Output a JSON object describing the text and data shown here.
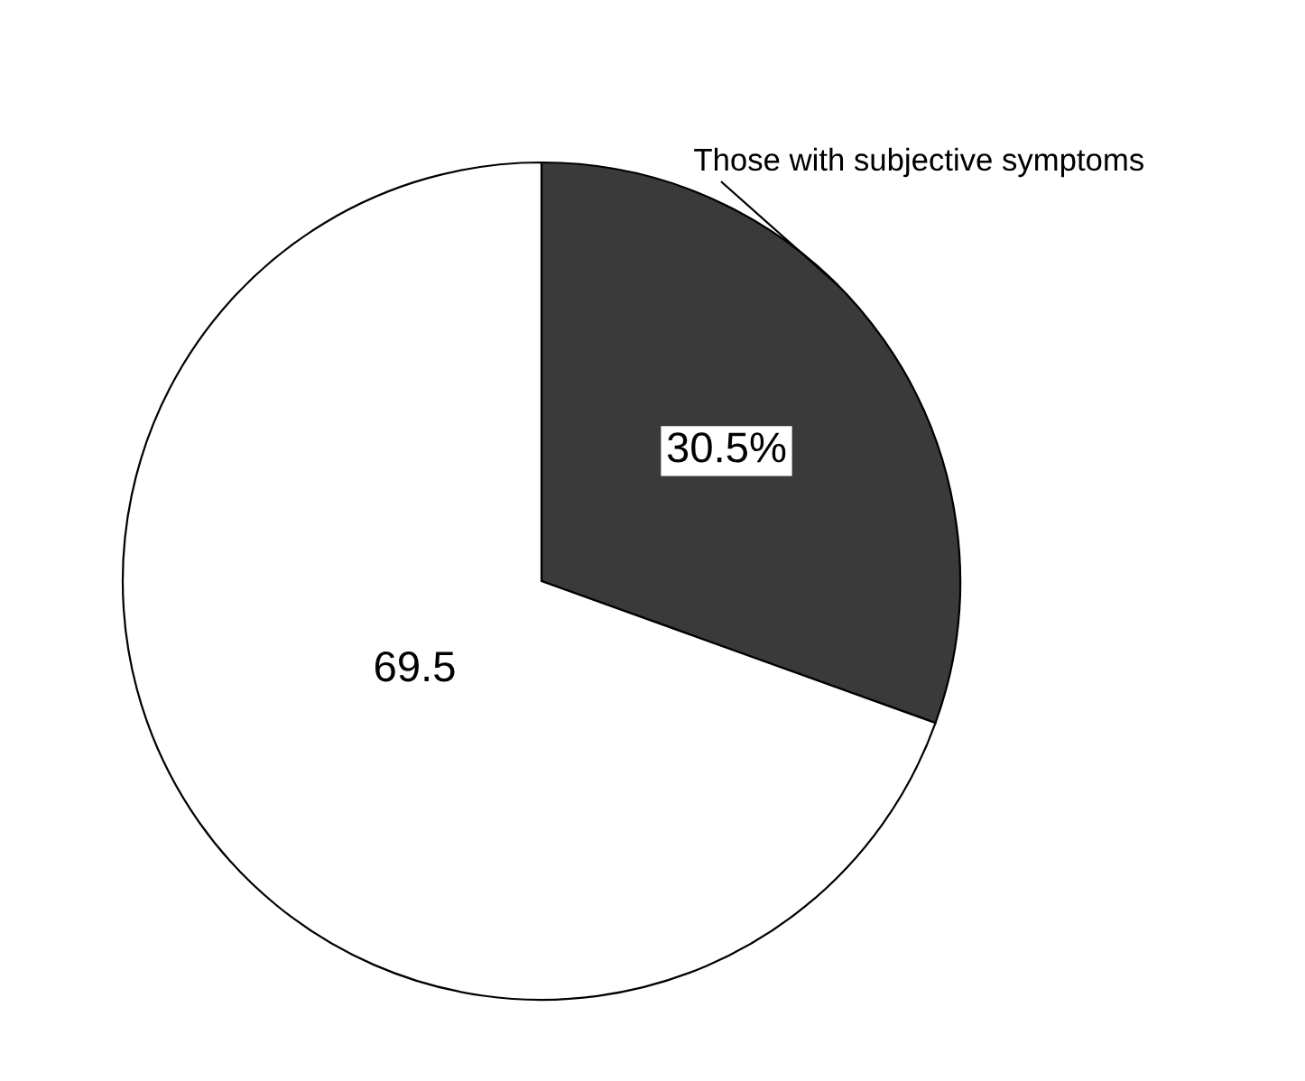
{
  "chart_data": {
    "type": "pie",
    "categories": [
      "Those with subjective symptoms",
      null
    ],
    "values": [
      30.5,
      69.5
    ],
    "colors": [
      "#3a3a3a",
      "#ffffff"
    ],
    "value_labels": [
      "30.5%",
      "69.5"
    ]
  }
}
